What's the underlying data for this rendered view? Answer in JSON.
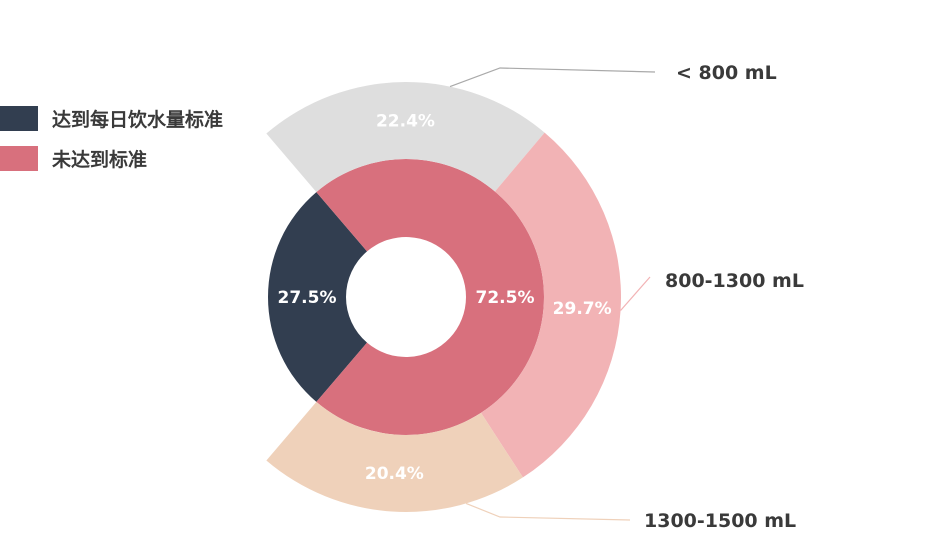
{
  "chart_data": {
    "type": "pie",
    "legend_placement": "top-left",
    "inner_ring": {
      "slices": [
        {
          "label": "达到每日饮水量标准",
          "value": 27.5,
          "value_label": "27.5%",
          "color": "#323e50"
        },
        {
          "label": "未达到标准",
          "value": 72.5,
          "value_label": "72.5%",
          "color": "#d8707d"
        }
      ]
    },
    "outer_ring": {
      "slices": [
        {
          "label": "< 800 mL",
          "value": 22.4,
          "value_label": "22.4%",
          "color": "#dedede",
          "line_color": "#a9a9a9"
        },
        {
          "label": "800-1300 mL",
          "value": 29.7,
          "value_label": "29.7%",
          "color": "#f2b3b5",
          "line_color": "#f2b3b5"
        },
        {
          "label": "1300-1500 mL",
          "value": 20.4,
          "value_label": "20.4%",
          "color": "#efd1ba",
          "line_color": "#efd1ba"
        }
      ]
    }
  }
}
